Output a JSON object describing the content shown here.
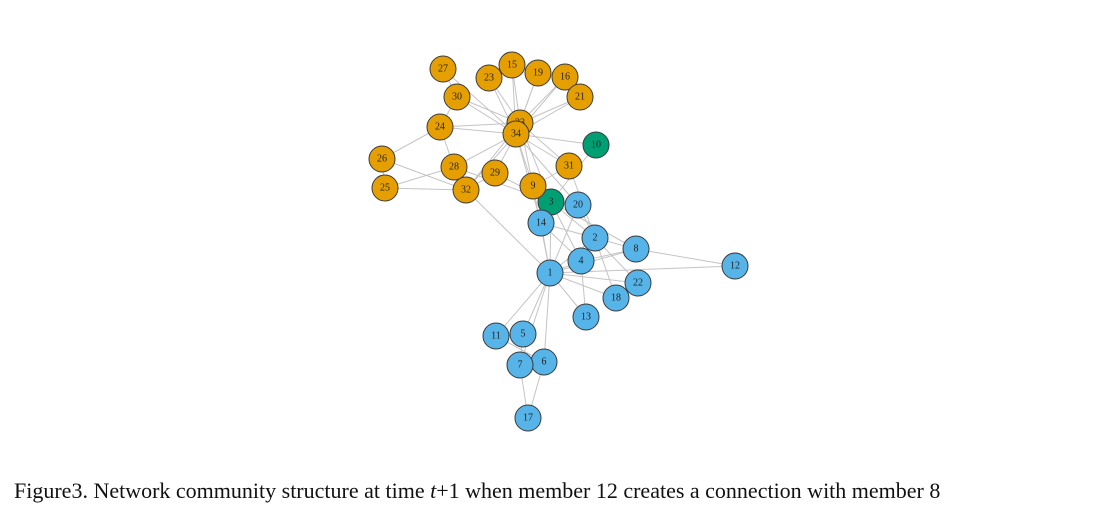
{
  "colors": {
    "orange": "#E69F00",
    "blue": "#56B4E9",
    "green": "#009E73"
  },
  "nodes": [
    {
      "id": "1",
      "community": "blue"
    },
    {
      "id": "2",
      "community": "blue"
    },
    {
      "id": "3",
      "community": "green"
    },
    {
      "id": "4",
      "community": "blue"
    },
    {
      "id": "5",
      "community": "blue"
    },
    {
      "id": "6",
      "community": "blue"
    },
    {
      "id": "7",
      "community": "blue"
    },
    {
      "id": "8",
      "community": "blue"
    },
    {
      "id": "9",
      "community": "orange"
    },
    {
      "id": "10",
      "community": "green"
    },
    {
      "id": "11",
      "community": "blue"
    },
    {
      "id": "12",
      "community": "blue"
    },
    {
      "id": "13",
      "community": "blue"
    },
    {
      "id": "14",
      "community": "blue"
    },
    {
      "id": "15",
      "community": "orange"
    },
    {
      "id": "16",
      "community": "orange"
    },
    {
      "id": "17",
      "community": "blue"
    },
    {
      "id": "18",
      "community": "blue"
    },
    {
      "id": "19",
      "community": "orange"
    },
    {
      "id": "20",
      "community": "blue"
    },
    {
      "id": "21",
      "community": "orange"
    },
    {
      "id": "22",
      "community": "blue"
    },
    {
      "id": "23",
      "community": "orange"
    },
    {
      "id": "24",
      "community": "orange"
    },
    {
      "id": "25",
      "community": "orange"
    },
    {
      "id": "26",
      "community": "orange"
    },
    {
      "id": "27",
      "community": "orange"
    },
    {
      "id": "28",
      "community": "orange"
    },
    {
      "id": "29",
      "community": "orange"
    },
    {
      "id": "30",
      "community": "orange"
    },
    {
      "id": "31",
      "community": "orange"
    },
    {
      "id": "32",
      "community": "orange"
    },
    {
      "id": "33",
      "community": "orange"
    },
    {
      "id": "34",
      "community": "orange"
    }
  ],
  "edges": [
    [
      "1",
      "2"
    ],
    [
      "1",
      "3"
    ],
    [
      "1",
      "4"
    ],
    [
      "1",
      "5"
    ],
    [
      "1",
      "6"
    ],
    [
      "1",
      "7"
    ],
    [
      "1",
      "8"
    ],
    [
      "1",
      "9"
    ],
    [
      "1",
      "11"
    ],
    [
      "1",
      "12"
    ],
    [
      "1",
      "13"
    ],
    [
      "1",
      "14"
    ],
    [
      "1",
      "18"
    ],
    [
      "1",
      "20"
    ],
    [
      "1",
      "22"
    ],
    [
      "1",
      "32"
    ],
    [
      "2",
      "3"
    ],
    [
      "2",
      "4"
    ],
    [
      "2",
      "8"
    ],
    [
      "2",
      "14"
    ],
    [
      "2",
      "18"
    ],
    [
      "2",
      "20"
    ],
    [
      "2",
      "22"
    ],
    [
      "2",
      "31"
    ],
    [
      "3",
      "4"
    ],
    [
      "3",
      "8"
    ],
    [
      "3",
      "9"
    ],
    [
      "3",
      "10"
    ],
    [
      "3",
      "14"
    ],
    [
      "3",
      "28"
    ],
    [
      "3",
      "29"
    ],
    [
      "3",
      "33"
    ],
    [
      "4",
      "8"
    ],
    [
      "4",
      "13"
    ],
    [
      "4",
      "14"
    ],
    [
      "5",
      "7"
    ],
    [
      "5",
      "11"
    ],
    [
      "6",
      "7"
    ],
    [
      "6",
      "11"
    ],
    [
      "6",
      "17"
    ],
    [
      "7",
      "17"
    ],
    [
      "8",
      "12"
    ],
    [
      "9",
      "31"
    ],
    [
      "9",
      "33"
    ],
    [
      "9",
      "34"
    ],
    [
      "10",
      "34"
    ],
    [
      "14",
      "34"
    ],
    [
      "15",
      "33"
    ],
    [
      "15",
      "34"
    ],
    [
      "16",
      "33"
    ],
    [
      "16",
      "34"
    ],
    [
      "19",
      "33"
    ],
    [
      "19",
      "34"
    ],
    [
      "20",
      "34"
    ],
    [
      "21",
      "33"
    ],
    [
      "21",
      "34"
    ],
    [
      "23",
      "33"
    ],
    [
      "23",
      "34"
    ],
    [
      "24",
      "26"
    ],
    [
      "24",
      "28"
    ],
    [
      "24",
      "30"
    ],
    [
      "24",
      "33"
    ],
    [
      "24",
      "34"
    ],
    [
      "25",
      "26"
    ],
    [
      "25",
      "28"
    ],
    [
      "25",
      "32"
    ],
    [
      "26",
      "32"
    ],
    [
      "27",
      "30"
    ],
    [
      "27",
      "34"
    ],
    [
      "28",
      "34"
    ],
    [
      "29",
      "32"
    ],
    [
      "29",
      "34"
    ],
    [
      "30",
      "33"
    ],
    [
      "30",
      "34"
    ],
    [
      "31",
      "33"
    ],
    [
      "31",
      "34"
    ],
    [
      "32",
      "33"
    ],
    [
      "32",
      "34"
    ],
    [
      "33",
      "34"
    ]
  ],
  "caption": {
    "prefix": "Figure3. Network community structure at time ",
    "variable": "t",
    "suffix": "+1 when member 12 creates a connection with member 8"
  }
}
